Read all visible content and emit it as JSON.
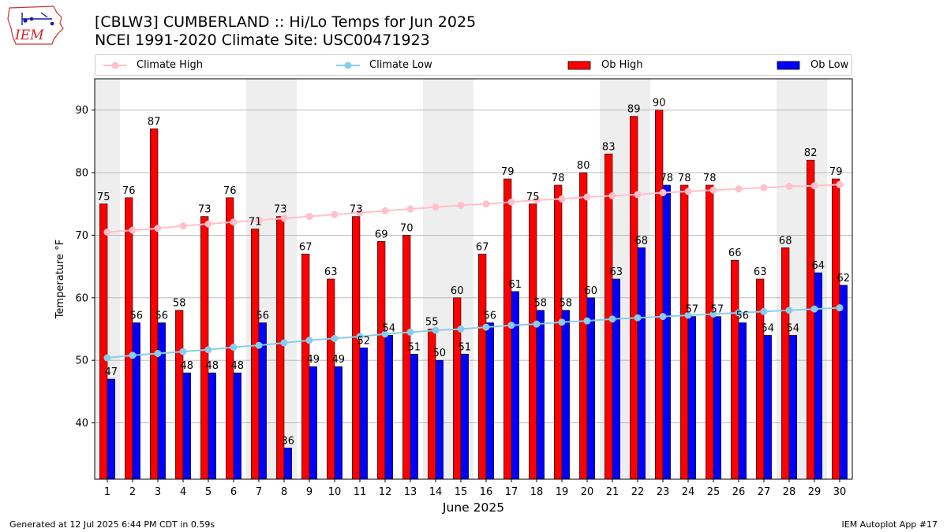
{
  "header": {
    "logo_text": "IEM",
    "title_line1": "[CBLW3] CUMBERLAND :: Hi/Lo Temps for Jun 2025",
    "title_line2": "NCEI 1991-2020 Climate Site: USC00471923"
  },
  "legend": {
    "climate_high": "Climate High",
    "climate_low": "Climate Low",
    "ob_high": "Ob High",
    "ob_low": "Ob Low"
  },
  "colors": {
    "ob_high": "#ff0000",
    "ob_low": "#0000ff",
    "climate_high": "#ffc0cb",
    "climate_low": "#87ceeb",
    "weekend_shade": "#eeeeee",
    "grid": "#b0b0b0"
  },
  "footer": {
    "generated": "Generated at 12 Jul 2025 6:44 PM CDT in 0.59s",
    "app": "IEM Autoplot App #17"
  },
  "chart_data": {
    "type": "bar",
    "xlabel": "June 2025",
    "ylabel": "Temperature °F",
    "ylim": [
      31,
      95
    ],
    "yticks": [
      40,
      50,
      60,
      70,
      80,
      90
    ],
    "grid": "horizontal",
    "categories": [
      "1",
      "2",
      "3",
      "4",
      "5",
      "6",
      "7",
      "8",
      "9",
      "10",
      "11",
      "12",
      "13",
      "14",
      "15",
      "16",
      "17",
      "18",
      "19",
      "20",
      "21",
      "22",
      "23",
      "24",
      "25",
      "26",
      "27",
      "28",
      "29",
      "30"
    ],
    "shaded_days": [
      1,
      7,
      8,
      14,
      15,
      21,
      22,
      28,
      29
    ],
    "series": [
      {
        "name": "Ob High",
        "kind": "bar",
        "values": [
          75,
          76,
          87,
          58,
          73,
          76,
          71,
          73,
          67,
          63,
          73,
          69,
          70,
          55,
          60,
          67,
          79,
          75,
          78,
          80,
          83,
          89,
          90,
          78,
          78,
          66,
          63,
          68,
          82,
          79
        ]
      },
      {
        "name": "Ob Low",
        "kind": "bar",
        "values": [
          47,
          56,
          56,
          48,
          48,
          48,
          56,
          36,
          49,
          49,
          52,
          54,
          51,
          50,
          51,
          56,
          61,
          58,
          58,
          60,
          63,
          68,
          78,
          57,
          57,
          56,
          54,
          54,
          64,
          62
        ]
      },
      {
        "name": "Climate High",
        "kind": "line",
        "values": [
          70.5,
          70.8,
          71.1,
          71.5,
          71.8,
          72.1,
          72.4,
          72.7,
          73.0,
          73.3,
          73.6,
          73.9,
          74.2,
          74.5,
          74.8,
          75.0,
          75.3,
          75.6,
          75.8,
          76.1,
          76.3,
          76.5,
          76.8,
          77.0,
          77.2,
          77.4,
          77.6,
          77.8,
          77.9,
          78.1
        ]
      },
      {
        "name": "Climate Low",
        "kind": "line",
        "values": [
          50.4,
          50.8,
          51.1,
          51.4,
          51.7,
          52.1,
          52.4,
          52.8,
          53.2,
          53.5,
          53.8,
          54.2,
          54.5,
          54.8,
          55.0,
          55.3,
          55.6,
          55.8,
          56.1,
          56.3,
          56.6,
          56.8,
          57.0,
          57.2,
          57.4,
          57.6,
          57.8,
          58.0,
          58.2,
          58.4
        ]
      }
    ]
  }
}
